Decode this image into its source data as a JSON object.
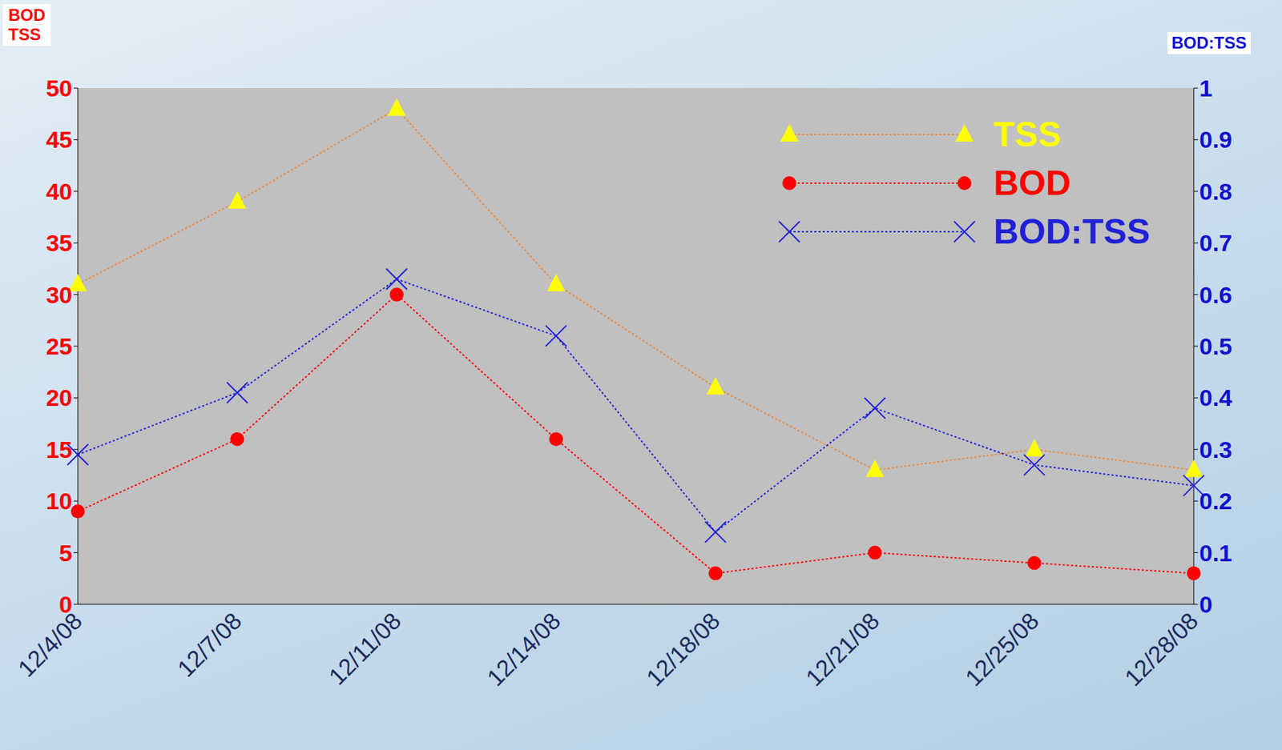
{
  "chart_data": {
    "type": "line",
    "y_label": "BOD TSS",
    "y2_label": "BOD:TSS",
    "categories": [
      "12/4/08",
      "12/7/08",
      "12/11/08",
      "12/14/08",
      "12/18/08",
      "12/21/08",
      "12/25/08",
      "12/28/08"
    ],
    "series": [
      {
        "name": "TSS",
        "color": "#ffff00",
        "marker": "triangle",
        "line_style": "dotted",
        "values": [
          31,
          39,
          48,
          31,
          21,
          13,
          15,
          13
        ]
      },
      {
        "name": "BOD",
        "color": "#ff0000",
        "marker": "circle",
        "line_style": "dotted",
        "values": [
          9,
          16,
          30,
          16,
          3,
          5,
          4,
          3
        ]
      },
      {
        "name": "BOD:TSS",
        "color": "#2020d8",
        "marker": "x",
        "line_style": "dotted",
        "axis": "y2",
        "values": [
          0.29,
          0.41,
          0.63,
          0.52,
          0.14,
          0.38,
          0.27,
          0.23
        ]
      }
    ],
    "ylim": [
      0,
      50
    ],
    "yticks": [
      0,
      5,
      10,
      15,
      20,
      25,
      30,
      35,
      40,
      45,
      50
    ],
    "y2lim": [
      0,
      1
    ],
    "y2ticks": [
      0,
      0.1,
      0.2,
      0.3,
      0.4,
      0.5,
      0.6,
      0.7,
      0.8,
      0.9,
      1
    ],
    "grid": false,
    "legend": "upper right"
  }
}
